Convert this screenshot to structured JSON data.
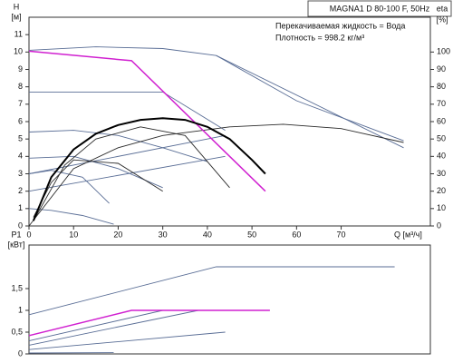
{
  "header": {
    "legend_box": "MAGNA1 D 80-100 F, 50Hz",
    "notes": [
      "Перекачиваемая жидкость = Вода",
      "Плотность = 998.2 кг/м³"
    ]
  },
  "chart_data": [
    {
      "type": "line",
      "y_label": "H",
      "y_unit": "[м]",
      "y2_label": "eta",
      "y2_unit": "[%]",
      "x_label": "Q [м³/ч]",
      "xlim": [
        0,
        90
      ],
      "ylim": [
        0,
        12
      ],
      "y2lim": [
        0,
        120
      ],
      "xticks": [
        0,
        10,
        20,
        30,
        40,
        50,
        60,
        70
      ],
      "yticks": [
        0,
        1,
        2,
        3,
        4,
        5,
        6,
        7,
        8,
        9,
        10,
        11
      ],
      "y2ticks": [
        0,
        10,
        20,
        30,
        40,
        50,
        60,
        70,
        80,
        90,
        100
      ],
      "series": [
        {
          "color": "#5a6e96",
          "x": [
            0,
            15,
            30,
            42,
            60,
            84
          ],
          "values": [
            10.1,
            10.3,
            10.2,
            9.8,
            7.2,
            4.9
          ]
        },
        {
          "color": "#5a6e96",
          "x": [
            42,
            84
          ],
          "values": [
            9.8,
            4.5
          ]
        },
        {
          "color": "#5a6e96",
          "x": [
            0,
            30,
            44
          ],
          "values": [
            7.7,
            7.7,
            5.5
          ]
        },
        {
          "color": "#5a6e96",
          "x": [
            0,
            10,
            20,
            30,
            40
          ],
          "values": [
            5.4,
            5.5,
            5.2,
            4.5,
            3.7
          ]
        },
        {
          "color": "#5a6e96",
          "x": [
            0,
            10,
            20,
            30
          ],
          "values": [
            3.9,
            4.0,
            3.3,
            2.2
          ]
        },
        {
          "color": "#5a6e96",
          "x": [
            0,
            5,
            12,
            18
          ],
          "values": [
            3,
            3.2,
            2.8,
            1.3
          ]
        },
        {
          "color": "#5a6e96",
          "x": [
            0,
            5,
            12,
            19
          ],
          "values": [
            1,
            0.9,
            0.6,
            0.1
          ]
        },
        {
          "color": "#5a6e96",
          "x": [
            0,
            44
          ],
          "values": [
            2,
            4
          ]
        },
        {
          "color": "#5a6e96",
          "x": [
            0,
            44
          ],
          "values": [
            3,
            5.2
          ]
        },
        {
          "color": "#2a2a2a",
          "axis": "y2",
          "x": [
            0,
            10,
            20,
            30,
            45,
            57,
            70,
            84
          ],
          "values": [
            0,
            33,
            45,
            52,
            57,
            58.5,
            56,
            48
          ]
        },
        {
          "color": "#2a2a2a",
          "axis": "y2",
          "x": [
            1,
            8,
            15,
            25,
            35,
            45
          ],
          "values": [
            3,
            35,
            50,
            57,
            52,
            22
          ]
        },
        {
          "color": "#2a2a2a",
          "axis": "y2",
          "x": [
            1,
            5,
            10,
            20,
            30
          ],
          "values": [
            5,
            25,
            38,
            36,
            20
          ]
        },
        {
          "color": "#d020d0",
          "x": [
            0,
            23,
            53
          ],
          "values": [
            10.05,
            9.5,
            2
          ]
        },
        {
          "color": "#000000",
          "axis": "y2",
          "x": [
            1,
            5,
            10,
            15,
            20,
            25,
            30,
            35,
            40,
            45,
            50,
            53
          ],
          "values": [
            3,
            28,
            44,
            53,
            58,
            61,
            62,
            61,
            57,
            50,
            38,
            30
          ]
        }
      ]
    },
    {
      "type": "line",
      "y_label": "P1",
      "y_unit": "[кВт]",
      "xlim": [
        0,
        90
      ],
      "ylim": [
        0,
        2.5
      ],
      "yticks": [
        0,
        {
          "value": 0.5,
          "label": "0,5"
        },
        1,
        {
          "value": 1.5,
          "label": "1,5"
        }
      ],
      "series": [
        {
          "color": "#5a6e96",
          "x": [
            0,
            42,
            82
          ],
          "values": [
            0.9,
            2,
            2
          ]
        },
        {
          "color": "#5a6e96",
          "x": [
            0,
            30,
            54
          ],
          "values": [
            0.3,
            1,
            1
          ]
        },
        {
          "color": "#5a6e96",
          "x": [
            0,
            38,
            49
          ],
          "values": [
            0.2,
            1,
            1
          ]
        },
        {
          "color": "#5a6e96",
          "x": [
            0,
            44
          ],
          "values": [
            0.1,
            0.5
          ]
        },
        {
          "color": "#5a6e96",
          "x": [
            0,
            19
          ],
          "values": [
            0.02,
            0.03
          ]
        },
        {
          "color": "#d020d0",
          "x": [
            0,
            23,
            54
          ],
          "values": [
            0.42,
            1,
            1
          ]
        }
      ]
    }
  ]
}
